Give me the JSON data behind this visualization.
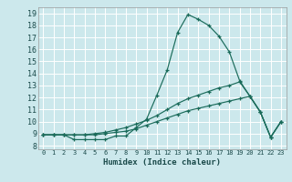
{
  "xlabel": "Humidex (Indice chaleur)",
  "bg_color": "#cce8ec",
  "grid_color": "#ffffff",
  "line_color": "#1a6b5a",
  "xlim": [
    -0.5,
    23.5
  ],
  "ylim": [
    7.7,
    19.5
  ],
  "xticks": [
    0,
    1,
    2,
    3,
    4,
    5,
    6,
    7,
    8,
    9,
    10,
    11,
    12,
    13,
    14,
    15,
    16,
    17,
    18,
    19,
    20,
    21,
    22,
    23
  ],
  "yticks": [
    8,
    9,
    10,
    11,
    12,
    13,
    14,
    15,
    16,
    17,
    18,
    19
  ],
  "line1_x": [
    0,
    1,
    2,
    3,
    4,
    5,
    6,
    7,
    8,
    9,
    10,
    11,
    12,
    13,
    14,
    15,
    16,
    17,
    18,
    19,
    20,
    21,
    22,
    23
  ],
  "line1_y": [
    8.9,
    8.9,
    8.9,
    8.5,
    8.5,
    8.5,
    8.5,
    8.8,
    8.8,
    9.5,
    10.2,
    12.2,
    14.3,
    17.4,
    18.9,
    18.5,
    18.0,
    17.1,
    15.8,
    13.4,
    12.1,
    10.8,
    8.7,
    10.0
  ],
  "line2_x": [
    0,
    1,
    2,
    3,
    4,
    5,
    6,
    7,
    8,
    9,
    10,
    11,
    12,
    13,
    14,
    15,
    16,
    17,
    18,
    19,
    20,
    21,
    22,
    23
  ],
  "line2_y": [
    8.9,
    8.9,
    8.9,
    8.9,
    8.9,
    9.0,
    9.1,
    9.3,
    9.5,
    9.8,
    10.1,
    10.5,
    11.0,
    11.5,
    11.9,
    12.2,
    12.5,
    12.8,
    13.0,
    13.3,
    12.1,
    10.8,
    8.7,
    10.0
  ],
  "line3_x": [
    0,
    1,
    2,
    3,
    4,
    5,
    6,
    7,
    8,
    9,
    10,
    11,
    12,
    13,
    14,
    15,
    16,
    17,
    18,
    19,
    20,
    21,
    22,
    23
  ],
  "line3_y": [
    8.9,
    8.9,
    8.9,
    8.9,
    8.9,
    8.9,
    9.0,
    9.1,
    9.2,
    9.4,
    9.7,
    10.0,
    10.3,
    10.6,
    10.9,
    11.1,
    11.3,
    11.5,
    11.7,
    11.9,
    12.1,
    10.8,
    8.7,
    10.0
  ]
}
